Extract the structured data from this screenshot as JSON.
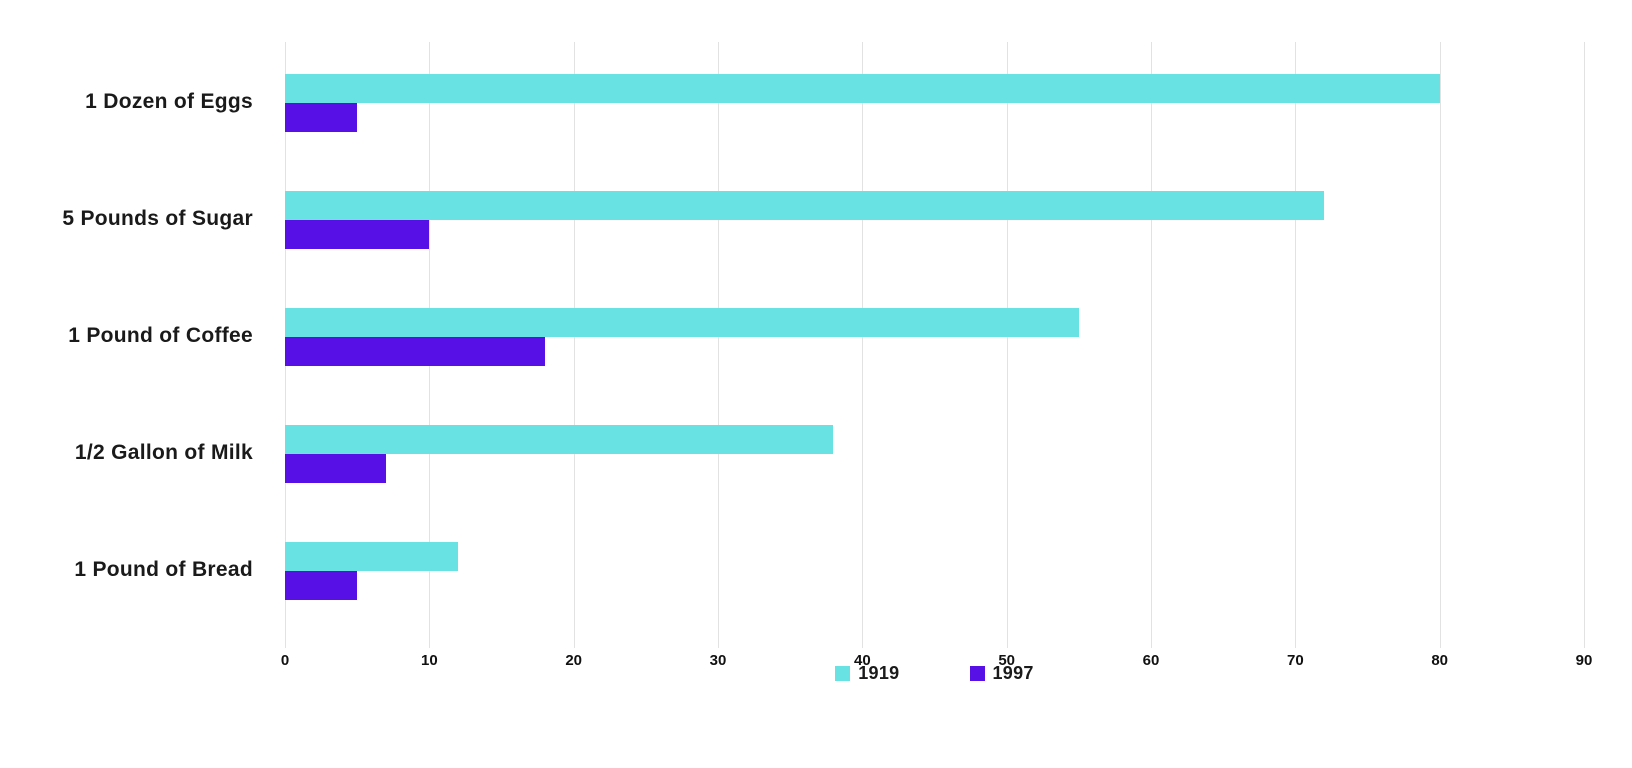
{
  "chart_data": {
    "type": "bar",
    "orientation": "horizontal",
    "title": "",
    "xlabel": "",
    "ylabel": "",
    "categories": [
      "1 Dozen of Eggs",
      "5 Pounds of Sugar",
      "1 Pound of Coffee",
      "1/2 Gallon of Milk",
      "1 Pound of Bread"
    ],
    "series": [
      {
        "name": "1919",
        "color": "#69E2E4",
        "values": [
          80,
          72,
          55,
          38,
          12
        ]
      },
      {
        "name": "1997",
        "color": "#5711E6",
        "values": [
          5,
          10,
          18,
          7,
          5
        ]
      }
    ],
    "xlim": [
      0,
      90
    ],
    "x_ticks": [
      0,
      10,
      20,
      30,
      40,
      50,
      60,
      70,
      80,
      90
    ],
    "grid": true,
    "legend_position": "bottom"
  },
  "legend": {
    "items": [
      {
        "label": "1919",
        "color": "#69E2E4"
      },
      {
        "label": "1997",
        "color": "#5711E6"
      }
    ]
  },
  "colors": {
    "background": "#ffffff",
    "grid": "#e2e2e2",
    "text": "#1a1a1a"
  }
}
